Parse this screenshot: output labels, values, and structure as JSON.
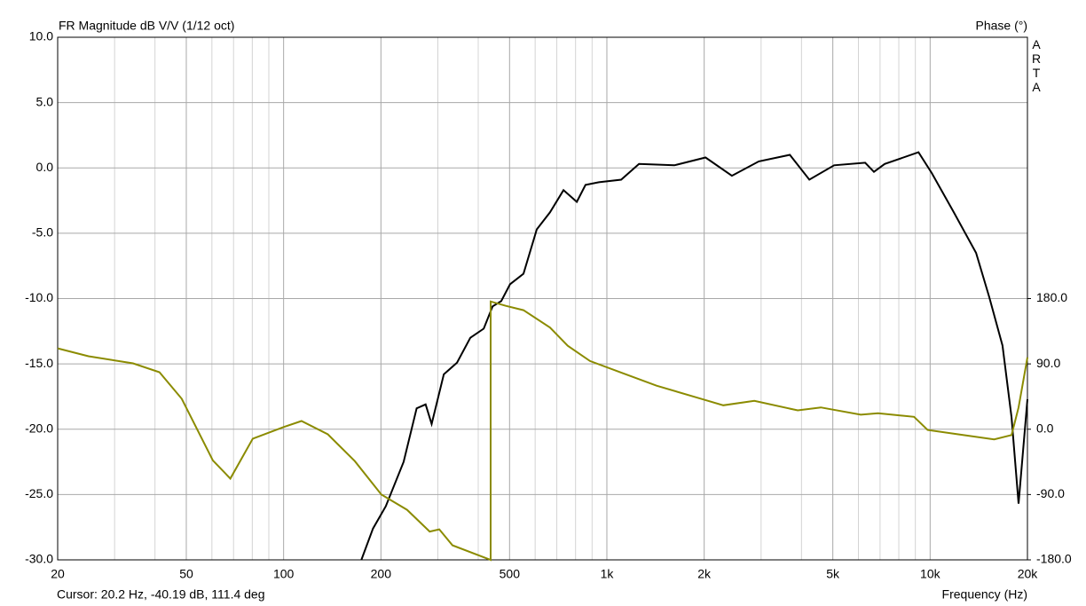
{
  "chart_data": {
    "type": "line",
    "title": "FR Magnitude dB V/V (1/12 oct)",
    "y2_label": "Phase (°)",
    "watermark": "ARTA",
    "cursor_text": "Cursor: 20.2 Hz, -40.19 dB, 111.4 deg",
    "x_label": "Frequency (Hz)",
    "xscale": "log",
    "grid": true,
    "xlim": [
      20,
      20000
    ],
    "xticks": [
      20,
      50,
      100,
      200,
      500,
      {
        "value": 1000,
        "label": "1k"
      },
      {
        "value": 2000,
        "label": "2k"
      },
      {
        "value": 5000,
        "label": "5k"
      },
      {
        "value": 10000,
        "label": "10k"
      },
      {
        "value": 20000,
        "label": "20k"
      }
    ],
    "xminorticks": [
      30,
      40,
      60,
      70,
      80,
      90,
      300,
      400,
      600,
      700,
      800,
      900,
      3000,
      4000,
      6000,
      7000,
      8000,
      9000
    ],
    "ylim": [
      -30,
      10
    ],
    "yticks": [
      {
        "value": 10,
        "label": "10.0"
      },
      {
        "value": 5,
        "label": "5.0"
      },
      {
        "value": 0,
        "label": "0.0"
      },
      {
        "value": -5,
        "label": "-5.0"
      },
      {
        "value": -10,
        "label": "-10.0"
      },
      {
        "value": -15,
        "label": "-15.0"
      },
      {
        "value": -20,
        "label": "-20.0"
      },
      {
        "value": -25,
        "label": "-25.0"
      },
      {
        "value": -30,
        "label": "-30.0"
      }
    ],
    "y2lim": [
      -180,
      540
    ],
    "y2ticks": [
      {
        "value": 180,
        "label": "180.0"
      },
      {
        "value": 90,
        "label": "90.0"
      },
      {
        "value": 0,
        "label": "0.0"
      },
      {
        "value": -90,
        "label": "-90.0"
      },
      {
        "value": -180,
        "label": "-180.0"
      }
    ],
    "series": [
      {
        "color": "#000000",
        "x": [
          174,
          189,
          207,
          235,
          258,
          275,
          287,
          313,
          344,
          378,
          416,
          443,
          471,
          502,
          552,
          607,
          667,
          734,
          807,
          859,
          945,
          1107,
          1257,
          1617,
          2020,
          2437,
          2950,
          3681,
          4230,
          5045,
          6296,
          6700,
          7236,
          9206,
          10120,
          11840,
          13870,
          15240,
          16750,
          17860,
          18780,
          20000
        ],
        "values": [
          -30,
          -27.6,
          -25.9,
          -22.5,
          -18.4,
          -18.1,
          -19.6,
          -15.8,
          -14.9,
          -13.0,
          -12.3,
          -10.6,
          -10.2,
          -8.9,
          -8.1,
          -4.7,
          -3.4,
          -1.7,
          -2.6,
          -1.3,
          -1.1,
          -0.9,
          0.3,
          0.2,
          0.8,
          -0.6,
          0.5,
          1.0,
          -0.9,
          0.2,
          0.4,
          -0.3,
          0.3,
          1.2,
          -0.4,
          -3.4,
          -6.5,
          -9.9,
          -13.6,
          -19.1,
          -25.7,
          -17.7
        ]
      },
      {
        "color": "#8b8b00",
        "axis": "y2",
        "x": [
          20,
          24.9,
          34.2,
          41.3,
          48.4,
          60.4,
          68.4,
          80.3,
          100,
          113.6,
          137,
          166,
          200.6,
          241,
          283,
          303,
          333,
          437,
          437,
          487,
          552,
          667,
          757,
          887,
          1107,
          1425,
          1955,
          2291,
          2858,
          3893,
          4590,
          6100,
          6900,
          8915,
          9820,
          12220,
          15780,
          17860,
          18780,
          20000
        ],
        "values": [
          111.4,
          100.5,
          90.8,
          78.5,
          42,
          -43,
          -68,
          -13,
          3,
          11.3,
          -7,
          -44,
          -90,
          -111,
          -141,
          -138,
          -160,
          -180,
          176,
          170,
          164,
          140,
          115,
          94,
          78,
          60,
          42,
          33,
          39,
          26,
          30,
          20,
          22,
          17,
          -1,
          -7,
          -14,
          -8,
          30,
          99
        ]
      }
    ]
  }
}
